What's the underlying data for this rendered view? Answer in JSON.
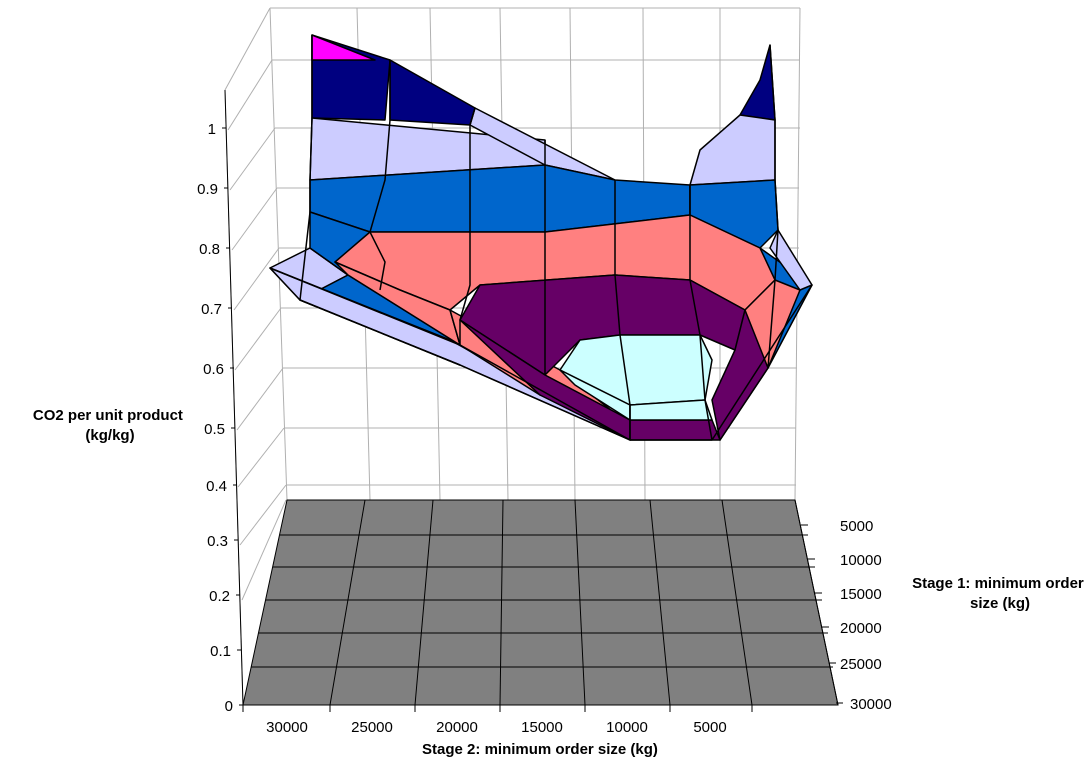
{
  "chart_data": {
    "type": "surface",
    "ylabel": "CO2 per unit product (kg/kg)",
    "z_ticks": [
      "0",
      "0.1",
      "0.2",
      "0.3",
      "0.4",
      "0.5",
      "0.6",
      "0.7",
      "0.8",
      "0.9",
      "1"
    ],
    "x_label": "Stage 2: minimum order size (kg)",
    "x_ticks": [
      "30000",
      "25000",
      "20000",
      "15000",
      "10000",
      "5000"
    ],
    "y_label": "Stage 1: minimum order size (kg)",
    "y_ticks": [
      "5000",
      "10000",
      "15000",
      "20000",
      "25000",
      "30000"
    ],
    "grid": true,
    "colors": {
      "floor": "#808080",
      "band_1": "#660066",
      "band_2": "#FF8080",
      "band_3": "#0066CC",
      "band_4": "#CCCCFF",
      "band_5": "#000080",
      "band_6": "#FF00FF",
      "band_lowest": "#CCFFFF"
    }
  }
}
